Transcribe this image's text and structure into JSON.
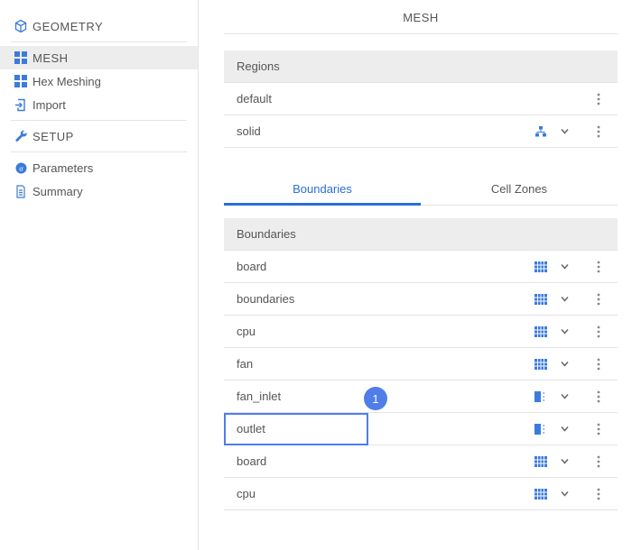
{
  "nav": {
    "geometry": "GEOMETRY",
    "mesh": "MESH",
    "hex_meshing": "Hex Meshing",
    "import": "Import",
    "setup": "SETUP",
    "parameters": "Parameters",
    "summary": "Summary"
  },
  "main": {
    "title": "MESH",
    "regions": {
      "header": "Regions",
      "items": [
        {
          "name": "default"
        },
        {
          "name": "solid",
          "has_tree_icon": true
        }
      ]
    },
    "tabs": {
      "boundaries": "Boundaries",
      "cell_zones": "Cell Zones"
    },
    "boundaries": {
      "header": "Boundaries",
      "items": [
        {
          "name": "board",
          "icon_variant": "grid"
        },
        {
          "name": "boundaries",
          "icon_variant": "grid"
        },
        {
          "name": "cpu",
          "icon_variant": "grid"
        },
        {
          "name": "fan",
          "icon_variant": "grid"
        },
        {
          "name": "fan_inlet",
          "icon_variant": "half"
        },
        {
          "name": "outlet",
          "icon_variant": "half",
          "highlighted": true,
          "badge": "1"
        },
        {
          "name": "board",
          "icon_variant": "grid"
        },
        {
          "name": "cpu",
          "icon_variant": "grid"
        }
      ]
    }
  },
  "colors": {
    "accent": "#3b7bdb",
    "highlight": "#4f7ee8"
  }
}
